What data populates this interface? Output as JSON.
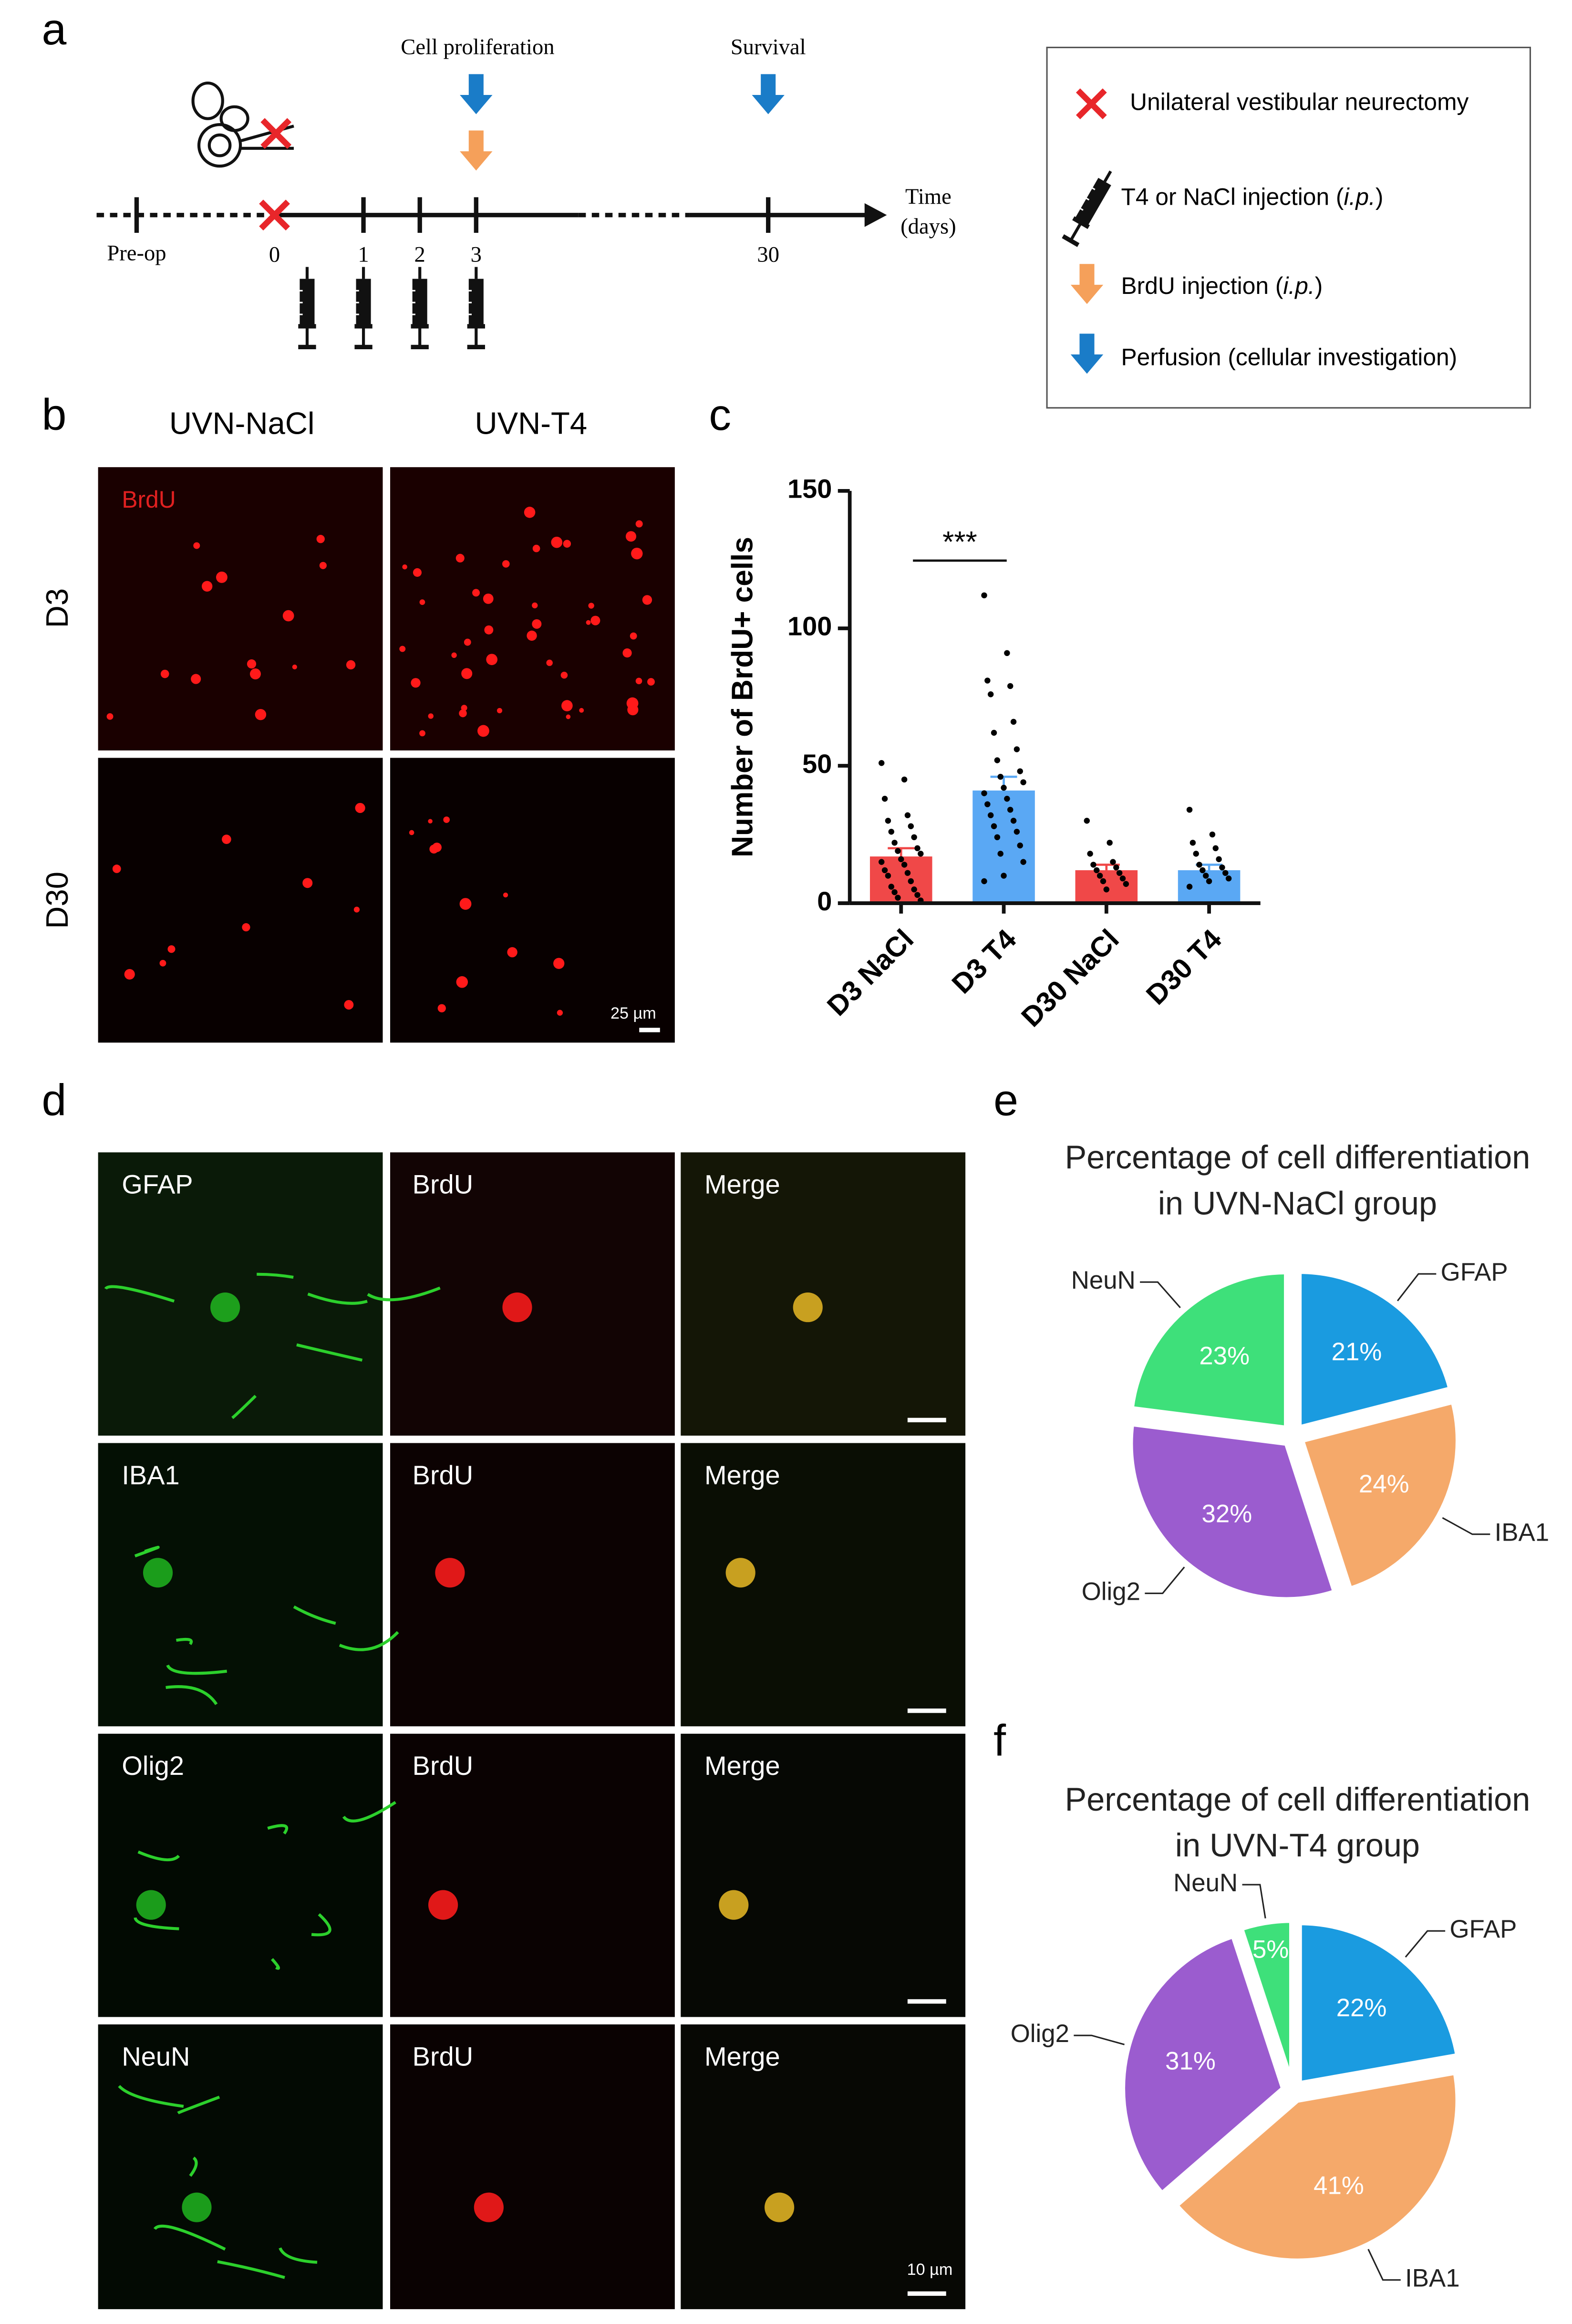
{
  "panel_labels": [
    "a",
    "b",
    "c",
    "d",
    "e",
    "f"
  ],
  "timeline": {
    "events": [
      "Cell proliferation",
      "Survival"
    ],
    "preop": "Pre-op",
    "days": [
      0,
      1,
      2,
      3,
      30
    ],
    "axis_label": [
      "Time",
      "(days)"
    ]
  },
  "legend": [
    {
      "label": "Unilateral vestibular neurectomy"
    },
    {
      "label": "T4 or NaCl injection (",
      "italic": "i.p.",
      "end": ")"
    },
    {
      "label": "BrdU injection (",
      "italic": "i.p.",
      "end": ")"
    },
    {
      "label": "Perfusion (cellular investigation)"
    }
  ],
  "images_b": {
    "columns": [
      "UVN-NaCl",
      "UVN-T4"
    ],
    "rows": [
      "D3",
      "D30"
    ],
    "stain": "BrdU",
    "scale": "25 µm"
  },
  "images_d": {
    "rows": [
      "GFAP",
      "IBA1",
      "Olig2",
      "NeuN"
    ],
    "stain": "BrdU",
    "merge": "Merge",
    "scale": "10 µm"
  },
  "chart_data": [
    {
      "type": "bar",
      "ylabel": "Number of BrdU+ cells",
      "categories": [
        "D3 NaCl",
        "D3 T4",
        "D30 NaCl",
        "D30 T4"
      ],
      "values": [
        17,
        41,
        12,
        12
      ],
      "errors": [
        3,
        5,
        2,
        2
      ],
      "colors": [
        "#f04848",
        "#5aa8f4",
        "#f04848",
        "#5aa8f4"
      ],
      "points": [
        [
          51,
          45,
          38,
          32,
          30,
          28,
          26,
          24,
          22,
          20,
          19,
          18,
          16,
          15,
          14,
          12,
          11,
          10,
          8,
          6,
          5,
          4,
          3,
          2,
          1
        ],
        [
          112,
          91,
          81,
          79,
          76,
          66,
          62,
          56,
          52,
          48,
          46,
          44,
          42,
          40,
          38,
          36,
          34,
          32,
          30,
          28,
          26,
          24,
          21,
          18,
          15,
          10,
          8
        ],
        [
          30,
          22,
          18,
          15,
          14,
          13,
          12,
          11,
          10,
          9,
          8,
          7,
          5
        ],
        [
          34,
          25,
          22,
          20,
          18,
          16,
          14,
          13,
          12,
          11,
          10,
          9,
          8,
          6
        ]
      ],
      "significance": "***",
      "ylim": [
        0,
        150
      ],
      "yticks": [
        0,
        50,
        100,
        150
      ]
    },
    {
      "type": "pie",
      "title": [
        "Percentage of cell differentiation",
        "in UVN-NaCl group"
      ],
      "categories": [
        "GFAP",
        "IBA1",
        "Olig2",
        "NeuN"
      ],
      "values": [
        21,
        24,
        32,
        23
      ],
      "value_labels": [
        "21%",
        "24%",
        "32%",
        "23%"
      ],
      "colors": [
        "#1a9be0",
        "#f5a96a",
        "#9b5ccf",
        "#3ee07a"
      ]
    },
    {
      "type": "pie",
      "title": [
        "Percentage of cell differentiation",
        "in UVN-T4 group"
      ],
      "categories": [
        "GFAP",
        "IBA1",
        "Olig2",
        "NeuN"
      ],
      "values": [
        22,
        41,
        31,
        5
      ],
      "value_labels": [
        "22%",
        "41%",
        "31%",
        "5%"
      ],
      "colors": [
        "#1a9be0",
        "#f5a96a",
        "#9b5ccf",
        "#3ee07a"
      ]
    }
  ]
}
